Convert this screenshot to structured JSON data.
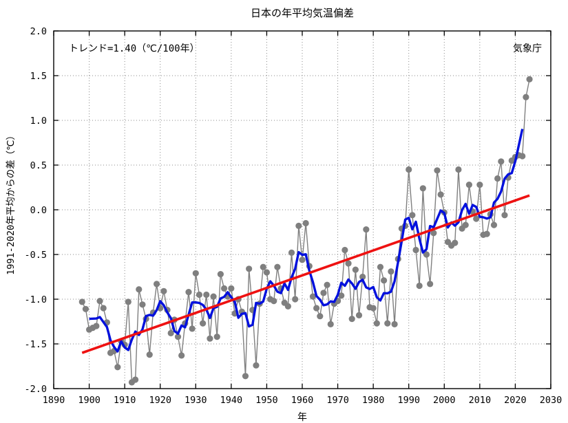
{
  "header": {
    "title": "日本の年平均気温偏差",
    "trend_annotation": "トレンド=1.40（℃/100年）",
    "source_label": "気象庁"
  },
  "chart_data": {
    "type": "line",
    "title": "日本の年平均気温偏差",
    "xlabel": "年",
    "ylabel": "1991-2020年平均からの差（℃）",
    "annotation": "トレンド=1.40（℃/100年）",
    "source": "気象庁",
    "grid": true,
    "legend_position": "none",
    "xlim": [
      1890,
      2030
    ],
    "ylim": [
      -2.0,
      2.0
    ],
    "xticks": [
      1890,
      1900,
      1910,
      1920,
      1930,
      1940,
      1950,
      1960,
      1970,
      1980,
      1990,
      2000,
      2010,
      2020,
      2030
    ],
    "yticks": [
      -2.0,
      -1.5,
      -1.0,
      -0.5,
      0.0,
      0.5,
      1.0,
      1.5,
      2.0
    ],
    "colors": {
      "annual": "#7f7f7f",
      "running_mean": "#0010dd",
      "trend": "#ee1111"
    },
    "start_year": 1898,
    "end_year": 2024,
    "series": [
      {
        "name": "annual-anomaly",
        "style": "gray line with dots",
        "values": [
          -1.03,
          -1.11,
          -1.34,
          -1.32,
          -1.3,
          -1.02,
          -1.1,
          -1.26,
          -1.6,
          -1.58,
          -1.76,
          -1.47,
          -1.51,
          -1.03,
          -1.93,
          -1.9,
          -0.89,
          -1.06,
          -1.22,
          -1.62,
          -1.15,
          -0.83,
          -1.1,
          -0.91,
          -1.12,
          -1.38,
          -1.23,
          -1.42,
          -1.63,
          -1.27,
          -0.92,
          -1.33,
          -0.71,
          -0.95,
          -1.27,
          -0.95,
          -1.44,
          -0.97,
          -1.42,
          -0.72,
          -0.88,
          -0.97,
          -0.88,
          -1.16,
          -1.0,
          -1.14,
          -1.86,
          -0.66,
          -1.12,
          -1.74,
          -1.05,
          -0.64,
          -0.7,
          -1.0,
          -1.02,
          -0.64,
          -0.88,
          -1.04,
          -1.08,
          -0.48,
          -1.0,
          -0.18,
          -0.56,
          -0.15,
          -0.63,
          -0.97,
          -1.1,
          -1.19,
          -0.93,
          -0.84,
          -1.28,
          -1.05,
          -1.02,
          -0.96,
          -0.45,
          -0.6,
          -1.22,
          -0.67,
          -1.18,
          -0.75,
          -0.22,
          -1.09,
          -1.1,
          -1.27,
          -0.64,
          -0.79,
          -1.27,
          -0.69,
          -1.28,
          -0.55,
          -0.21,
          -0.18,
          0.45,
          -0.06,
          -0.45,
          -0.85,
          0.24,
          -0.5,
          -0.83,
          -0.26,
          0.44,
          0.17,
          -0.03,
          -0.36,
          -0.4,
          -0.37,
          0.45,
          -0.21,
          -0.17,
          0.28,
          -0.02,
          -0.1,
          0.28,
          -0.28,
          -0.27,
          -0.05,
          -0.17,
          0.35,
          0.54,
          -0.06,
          0.36,
          0.55,
          0.59,
          0.61,
          0.6,
          1.26,
          1.46
        ]
      },
      {
        "name": "5yr-running-mean",
        "style": "thick blue line",
        "derived": "centered 5-year mean of annual-anomaly (1900-2022)"
      },
      {
        "name": "trend-line",
        "style": "thick red straight line",
        "slope_c_per_100yr": 1.4,
        "x": [
          1898,
          2024
        ],
        "y": [
          -1.6,
          0.16
        ]
      }
    ]
  }
}
